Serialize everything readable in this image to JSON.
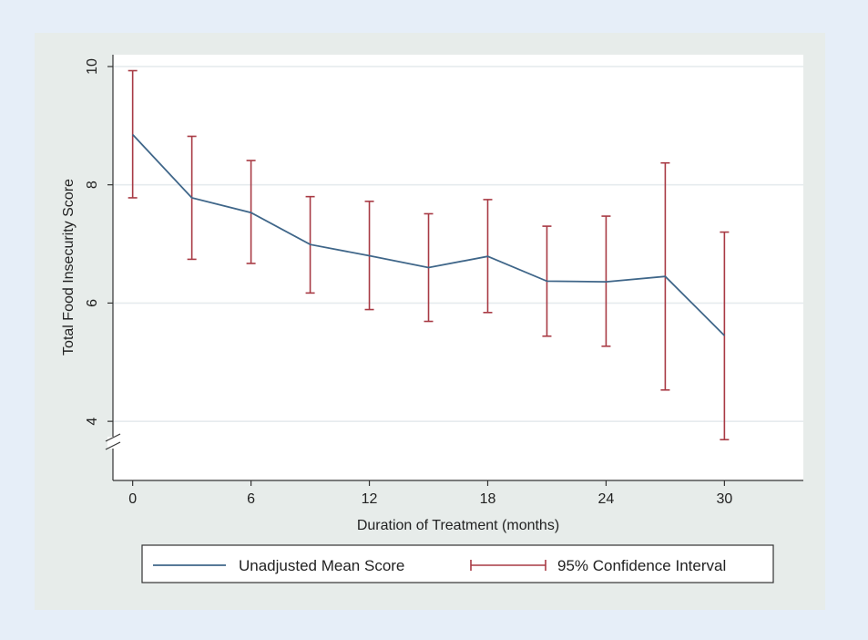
{
  "chart_data": {
    "type": "line",
    "xlabel": "Duration of Treatment (months)",
    "ylabel": "Total Food Insecurity Score",
    "xlim": [
      -1,
      34
    ],
    "ylim": [
      3.0,
      10.2
    ],
    "x_ticks": [
      0,
      6,
      12,
      18,
      24,
      30
    ],
    "y_ticks": [
      4,
      6,
      8,
      10
    ],
    "grid": true,
    "y_axis_break": true,
    "legend_position": "bottom",
    "series": [
      {
        "name": "Unadjusted Mean Score",
        "color": "#3f6689",
        "x": [
          0,
          3,
          6,
          9,
          12,
          15,
          18,
          21,
          24,
          27,
          30
        ],
        "y": [
          8.85,
          7.78,
          7.53,
          6.99,
          6.8,
          6.6,
          6.79,
          6.37,
          6.36,
          6.45,
          5.45
        ]
      },
      {
        "name": "95% Confidence Interval",
        "color": "#a83a44",
        "x": [
          0,
          3,
          6,
          9,
          12,
          15,
          18,
          21,
          24,
          27,
          30
        ],
        "lower": [
          7.78,
          6.74,
          6.67,
          6.17,
          5.89,
          5.69,
          5.84,
          5.44,
          5.27,
          4.53,
          3.69
        ],
        "upper": [
          9.93,
          8.82,
          8.41,
          7.8,
          7.72,
          7.51,
          7.75,
          7.3,
          7.47,
          8.37,
          7.2
        ]
      }
    ]
  }
}
